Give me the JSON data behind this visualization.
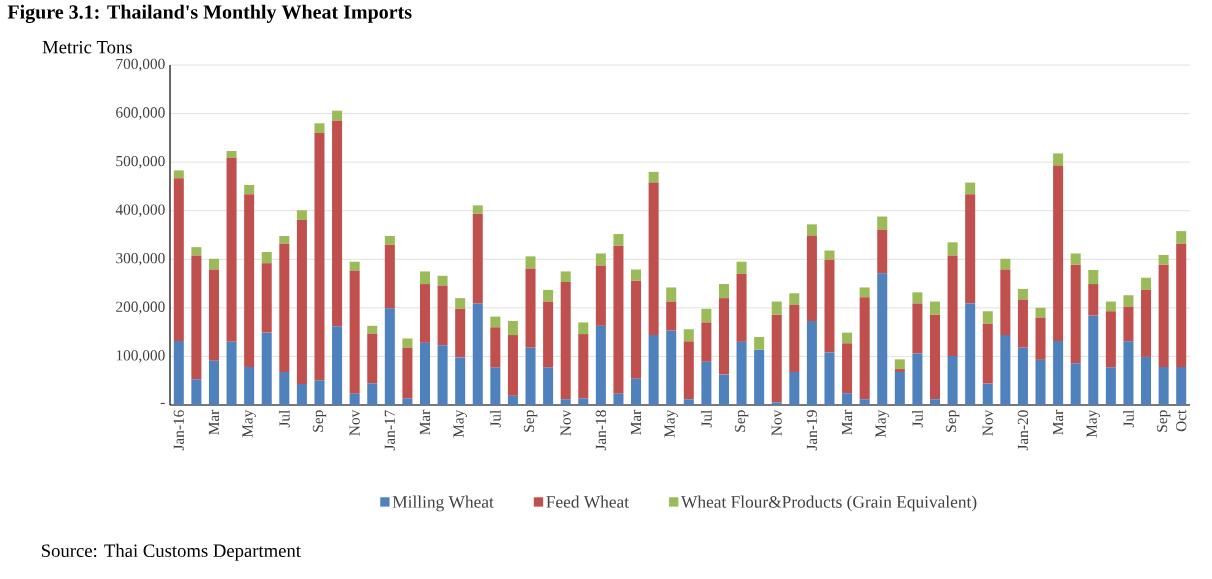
{
  "chart_data": {
    "type": "bar",
    "stacked": true,
    "title": "Figure 3.1: Thailand's Monthly Wheat Imports",
    "ylabel": "Metric Tons",
    "annotations": [
      "Source: Thai Customs Department"
    ],
    "categories": [
      "Jan-16",
      null,
      "Mar",
      null,
      "May",
      null,
      "Jul",
      null,
      "Sep",
      null,
      "Nov",
      null,
      "Jan-17",
      null,
      "Mar",
      null,
      "May",
      null,
      "Jul",
      null,
      "Sep",
      null,
      "Nov",
      null,
      "Jan-18",
      null,
      "Mar",
      null,
      "May",
      null,
      "Jul",
      null,
      "Sep",
      null,
      "Nov",
      null,
      "Jan-19",
      null,
      "Mar",
      null,
      "May",
      null,
      "Jul",
      null,
      "Sep",
      null,
      "Nov",
      null,
      "Jan-20",
      null,
      "Mar",
      null,
      "May",
      null,
      "Jul",
      null,
      "Sep",
      "Oct"
    ],
    "series": [
      {
        "name": "Milling Wheat",
        "color": "#4f81bd",
        "values": [
          132000,
          53000,
          91000,
          130000,
          78000,
          149000,
          68000,
          43000,
          51000,
          162000,
          23000,
          45000,
          199000,
          14000,
          128000,
          123000,
          98000,
          209000,
          77000,
          19000,
          118000,
          77000,
          12000,
          14000,
          163000,
          23000,
          54000,
          144000,
          153000,
          12000,
          89000,
          63000,
          130000,
          114000,
          5000,
          68000,
          173000,
          108000,
          24000,
          12000,
          271000,
          68000,
          106000,
          12000,
          101000,
          209000,
          44000,
          144000,
          118000,
          93000,
          132000,
          86000,
          184000,
          77000,
          131000,
          99000,
          78000,
          78000
        ]
      },
      {
        "name": "Feed Wheat",
        "color": "#c0504d",
        "values": [
          335000,
          255000,
          188000,
          379000,
          356000,
          143000,
          264000,
          338000,
          509000,
          424000,
          254000,
          102000,
          131000,
          104000,
          121000,
          123000,
          100000,
          185000,
          83000,
          125000,
          163000,
          136000,
          241000,
          132000,
          124000,
          305000,
          202000,
          314000,
          60000,
          119000,
          81000,
          157000,
          140000,
          0,
          181000,
          138000,
          176000,
          191000,
          103000,
          210000,
          90000,
          6000,
          103000,
          174000,
          207000,
          225000,
          123000,
          135000,
          99000,
          87000,
          361000,
          203000,
          65000,
          116000,
          71000,
          138000,
          211000,
          254000
        ]
      },
      {
        "name": "Wheat Flour&Products (Grain Equivalent)",
        "color": "#9bbb59",
        "values": [
          16000,
          17000,
          22000,
          14000,
          19000,
          23000,
          16000,
          20000,
          20000,
          20000,
          18000,
          16000,
          18000,
          19000,
          26000,
          20000,
          22000,
          17000,
          22000,
          29000,
          25000,
          24000,
          22000,
          24000,
          25000,
          24000,
          23000,
          22000,
          29000,
          25000,
          28000,
          29000,
          25000,
          26000,
          27000,
          24000,
          23000,
          19000,
          22000,
          20000,
          27000,
          20000,
          23000,
          27000,
          27000,
          24000,
          26000,
          22000,
          22000,
          20000,
          25000,
          23000,
          29000,
          20000,
          24000,
          25000,
          20000,
          26000
        ]
      }
    ],
    "ylim": [
      0,
      700000
    ],
    "yticks": [
      {
        "value": 0,
        "label": "-"
      },
      {
        "value": 100000,
        "label": "100,000"
      },
      {
        "value": 200000,
        "label": "200,000"
      },
      {
        "value": 300000,
        "label": "300,000"
      },
      {
        "value": 400000,
        "label": "400,000"
      },
      {
        "value": 500000,
        "label": "500,000"
      },
      {
        "value": 600000,
        "label": "600,000"
      },
      {
        "value": 700000,
        "label": "700,000"
      }
    ],
    "grid": "y",
    "legend": "bottom"
  }
}
